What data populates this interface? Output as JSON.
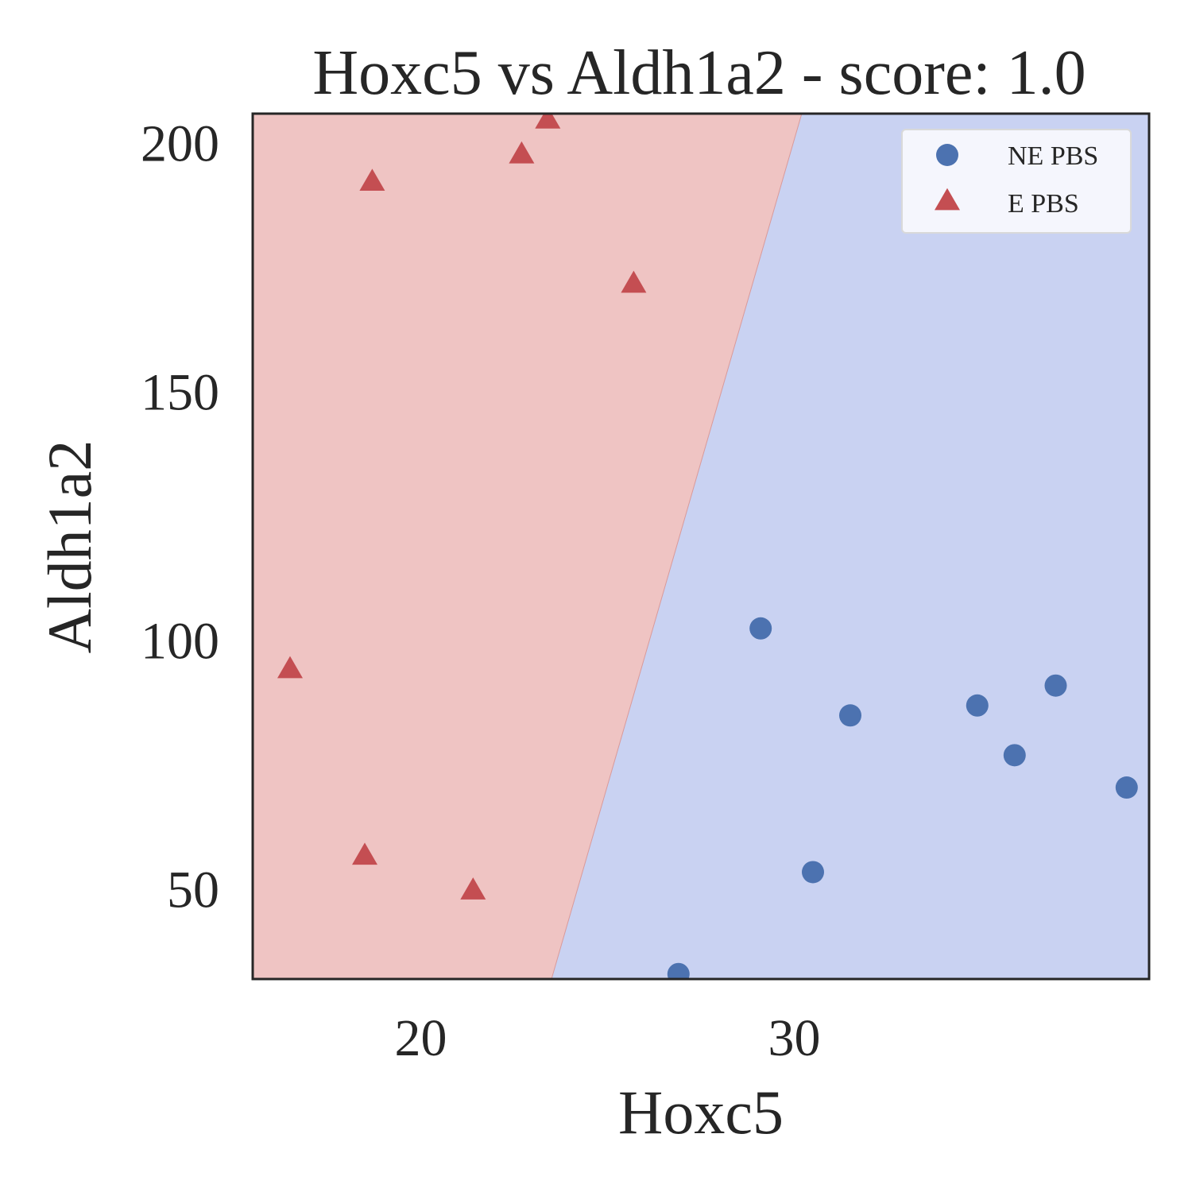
{
  "chart_data": {
    "type": "scatter",
    "title": "Hoxc5 vs Aldh1a2 - score: 1.0",
    "xlabel": "Hoxc5",
    "ylabel": "Aldh1a2",
    "xlim": [
      15.5,
      39.5
    ],
    "ylim": [
      32,
      206
    ],
    "xticks": [
      20,
      30
    ],
    "yticks": [
      50,
      100,
      150,
      200
    ],
    "grid": false,
    "legend_position": "top-right",
    "decision_boundary": {
      "points": [
        [
          23.5,
          32
        ],
        [
          30.2,
          206
        ]
      ],
      "left_region_color": "#efc4c3",
      "right_region_color": "#c9d2f2"
    },
    "series": [
      {
        "name": "NE PBS",
        "marker": "circle",
        "color": "#4c72b0",
        "points": [
          [
            29.1,
            102.5
          ],
          [
            31.5,
            85
          ],
          [
            34.9,
            87
          ],
          [
            37.0,
            91
          ],
          [
            35.9,
            77
          ],
          [
            38.9,
            70.5
          ],
          [
            30.5,
            53.5
          ],
          [
            26.9,
            33
          ]
        ]
      },
      {
        "name": "E PBS",
        "marker": "triangle",
        "color": "#c44e52",
        "points": [
          [
            23.4,
            204.5
          ],
          [
            22.7,
            197.5
          ],
          [
            18.7,
            192
          ],
          [
            25.7,
            171.5
          ],
          [
            16.5,
            94
          ],
          [
            18.5,
            56.5
          ],
          [
            21.4,
            49.5
          ]
        ]
      }
    ]
  }
}
